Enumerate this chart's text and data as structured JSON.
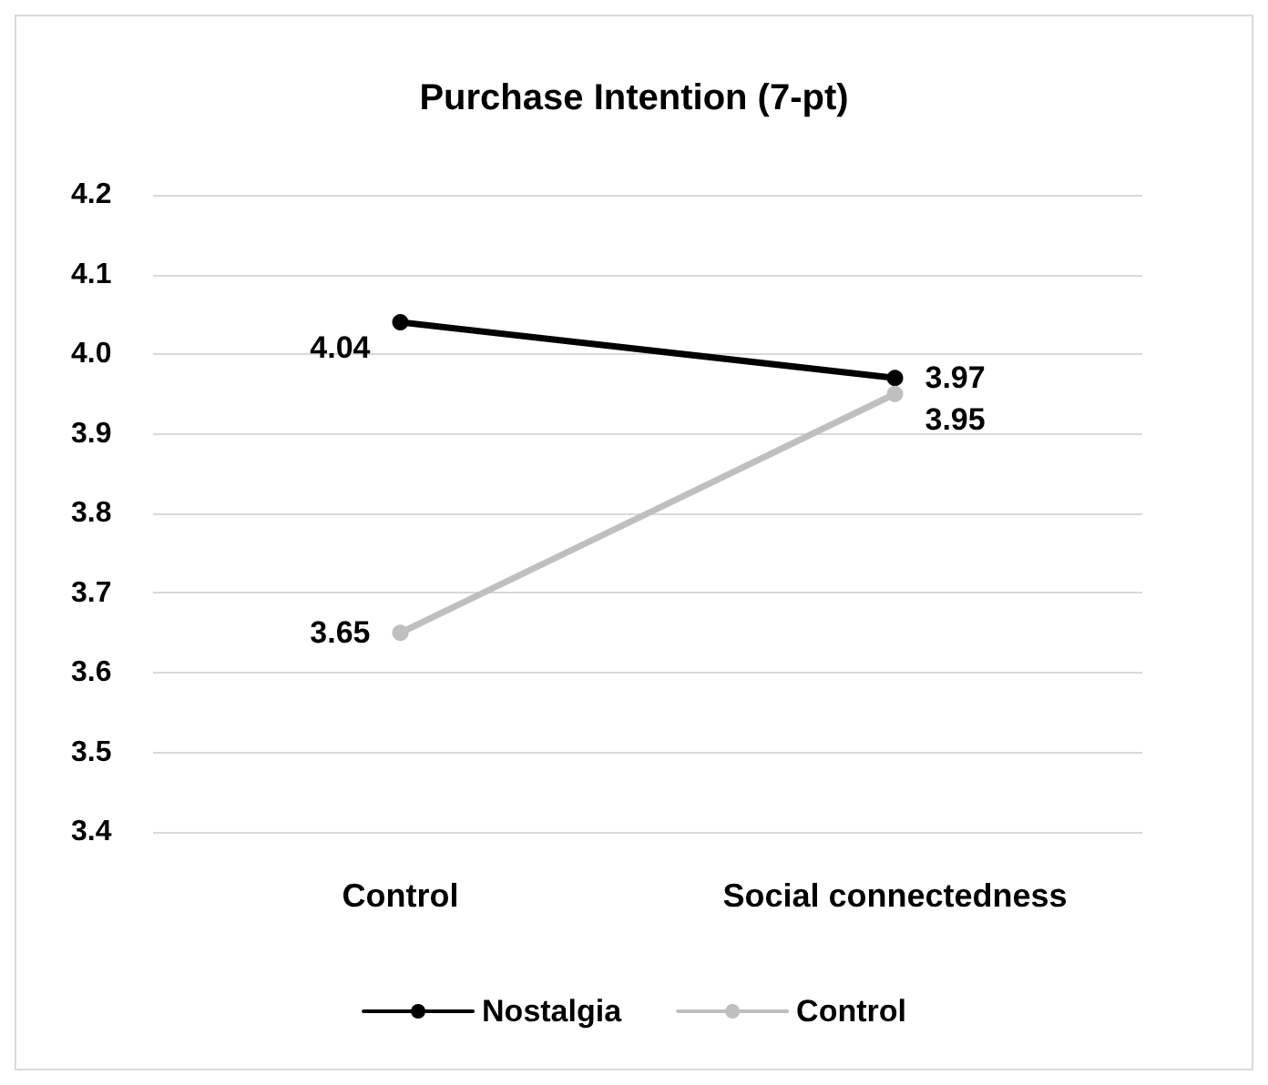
{
  "chart_data": {
    "type": "line",
    "title": "Purchase Intention (7-pt)",
    "categories": [
      "Control",
      "Social connectedness"
    ],
    "series": [
      {
        "name": "Nostalgia",
        "color": "#000000",
        "values": [
          4.04,
          3.97
        ]
      },
      {
        "name": "Control",
        "color": "#bfbfbf",
        "values": [
          3.65,
          3.95
        ]
      }
    ],
    "ylim": [
      3.4,
      4.2
    ],
    "yticks": [
      3.4,
      3.5,
      3.6,
      3.7,
      3.8,
      3.9,
      {
        "value": 4,
        "label": "4.0"
      },
      4.1,
      4.2
    ],
    "grid": "y",
    "legend": "bottom",
    "marker": "circle",
    "line_style": "solid",
    "data_labels": true
  }
}
